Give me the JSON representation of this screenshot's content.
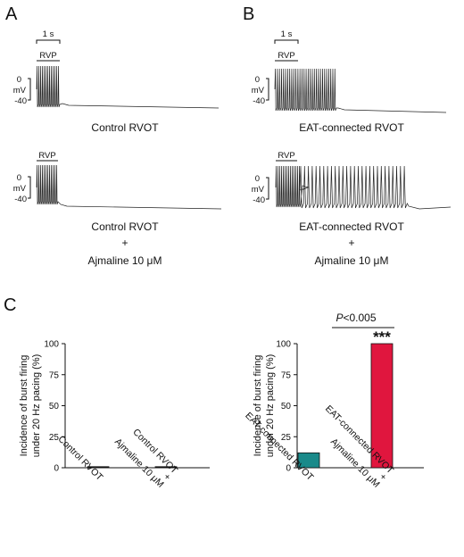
{
  "panels": {
    "a": "A",
    "b": "B",
    "c": "C"
  },
  "scale_bar": "1 s",
  "rvp": "RVP",
  "mv_labels": [
    "0",
    "mV",
    "-40"
  ],
  "traces": {
    "a_top": "Control RVOT",
    "a_bottom_1": "Control RVOT",
    "plus": "+",
    "ajmaline": "Ajmaline 10 μM",
    "b_top": "EAT-connected RVOT",
    "b_bottom_1": "EAT-connected RVOT"
  },
  "chart_data": [
    {
      "type": "bar",
      "ylabel_lines": [
        "Incidence of burst firing",
        "under 20 Hz pacing (%)"
      ],
      "ylim": [
        0,
        100
      ],
      "yticks": [
        "0",
        "25",
        "50",
        "75",
        "100"
      ],
      "categories": [
        [
          "Control RVOT"
        ],
        [
          "Control RVOT",
          "+",
          "Ajmaline 10 μM"
        ]
      ],
      "values": [
        0,
        0
      ],
      "colors": [
        "#111111",
        "#111111"
      ]
    },
    {
      "type": "bar",
      "ylabel_lines": [
        "Incidence of burst firing",
        "under 20 Hz pacing (%)"
      ],
      "ylim": [
        0,
        100
      ],
      "yticks": [
        "0",
        "25",
        "50",
        "75",
        "100"
      ],
      "categories": [
        [
          "EAT-connected RVOT"
        ],
        [
          "EAT-connected RVOT",
          "+",
          "Ajmaline 10 μM"
        ]
      ],
      "values": [
        12,
        100
      ],
      "colors": [
        "#1a8a8a",
        "#e0163e"
      ],
      "significance": {
        "bracket_label_italic": "P",
        "bracket_label_rest": "<0.005",
        "stars": "***"
      }
    }
  ]
}
